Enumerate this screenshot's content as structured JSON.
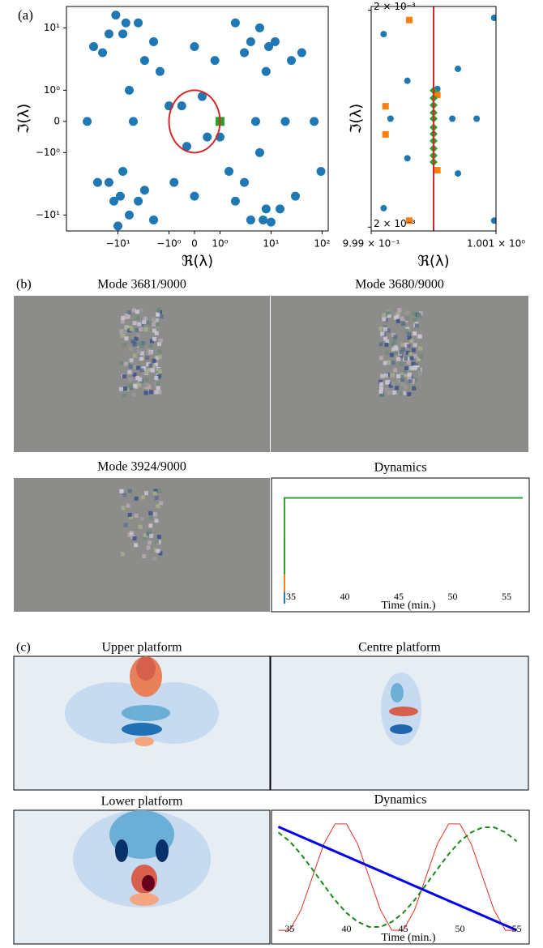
{
  "panel_labels": [
    "(a)",
    "(b)",
    "(c)"
  ],
  "mode_titles": {
    "b": [
      "Mode 3681/9000",
      "Mode 3680/9000",
      "Mode 3924/9000"
    ],
    "c": [
      "Upper platform",
      "Centre platform",
      "Lower platform"
    ]
  },
  "chart_data": [
    {
      "type": "scatter",
      "xlabel": "ℜ(λ)",
      "ylabel": "ℑ(λ)",
      "xscale": "symlog",
      "yscale": "symlog",
      "linthresh": 1,
      "linscale": 0.5,
      "xlim": [
        -102,
        132
      ],
      "ylim": [
        -18,
        22
      ],
      "xticks": [
        {
          "value": -10,
          "label": "−10¹"
        },
        {
          "value": -1,
          "label": "−10⁰"
        },
        0,
        {
          "value": 1,
          "label": "10⁰"
        },
        {
          "value": 10,
          "label": "10¹"
        },
        {
          "value": 100,
          "label": "10²"
        }
      ],
      "yticks": [
        {
          "value": -10,
          "label": "−10¹"
        },
        {
          "value": -1,
          "label": "−10⁰"
        },
        0,
        {
          "value": 1,
          "label": "10⁰"
        },
        {
          "value": 10,
          "label": "10¹"
        }
      ],
      "circle": {
        "radius": 1,
        "color": "#d62728"
      },
      "series": [
        {
          "color": "#1f77b4",
          "marker": "circle",
          "x": [
            -40,
            70,
            19,
            -11,
            -10,
            95,
            10,
            -20,
            -15,
            25,
            -6,
            6,
            -8,
            8,
            -3,
            3,
            -2,
            2,
            -5,
            5,
            -1.5,
            1.5,
            -4,
            4,
            -3,
            3,
            -0.5,
            0.5,
            -0.3,
            0.3,
            -12,
            12,
            -25,
            30,
            -7,
            7,
            -2,
            2,
            15,
            -15,
            0,
            0,
            -1,
            1,
            -8,
            8,
            -30,
            40,
            -6,
            6,
            -4,
            4,
            -9,
            9,
            0.8,
            -0.8
          ],
          "y": [
            0,
            0,
            0,
            16,
            -15,
            -2,
            -13,
            4,
            -3,
            3,
            -10,
            10,
            8,
            -8,
            -4,
            4,
            6,
            -6,
            0,
            0,
            2,
            -2,
            -6,
            6,
            3,
            -3,
            0.5,
            -0.5,
            -0.8,
            0.8,
            -6,
            6,
            -3,
            -5,
            12,
            -12,
            -12,
            12,
            -8,
            8,
            5,
            -5,
            0.5,
            -0.5,
            -2,
            2,
            5,
            4,
            1,
            -1,
            12,
            -12,
            -5,
            5,
            3,
            -3
          ]
        },
        {
          "color": "#2ca02c",
          "marker": "square",
          "x": [
            1
          ],
          "y": [
            0
          ]
        }
      ]
    },
    {
      "type": "scatter",
      "xlabel": "ℜ(λ)",
      "ylabel": "ℑ(λ)",
      "xlim": [
        0.999,
        1.001
      ],
      "ylim": [
        -0.00207,
        0.00207
      ],
      "xticks": [
        {
          "value": 0.999,
          "label": "9.99 × 10⁻¹"
        },
        {
          "value": 1.001,
          "label": "1.001 × 10⁰"
        }
      ],
      "yticks": [
        {
          "value": 0.002,
          "label": "2 × 10⁻³"
        },
        {
          "value": -0.002,
          "label": "2 × 10⁻³"
        }
      ],
      "vline": {
        "x": 1,
        "color": "#d62728"
      },
      "series": [
        {
          "color": "#1f77b4",
          "marker": "circle",
          "x": [
            0.9992,
            0.99958,
            1.00006,
            1.00039,
            0.99931,
            1.0003,
            1.00069,
            0.99958,
            1.00039,
            0.9992,
            1.00097,
            1.00097
          ],
          "y": [
            0.00156,
            0.0007,
            0.00055,
            0.00092,
            0,
            0,
            0,
            -0.00073,
            -0.00101,
            -0.00165,
            -0.00188,
            0.00186
          ]
        },
        {
          "color": "#ff7f0e",
          "marker": "square",
          "x": [
            0.99961,
            0.99923,
            0.99923,
            1.00006,
            1.00006,
            0.99961
          ],
          "y": [
            0.00182,
            0.00023,
            -0.00029,
            0.00044,
            -0.00095,
            -0.00188
          ]
        },
        {
          "color": "#2ca02c",
          "marker": "diamond",
          "x": [
            1,
            1,
            1,
            1,
            1,
            1,
            1,
            1,
            1,
            1,
            1
          ],
          "y": [
            0.00052,
            0.00038,
            0.00025,
            0.00011,
            0,
            -0.00016,
            -0.00028,
            -0.00041,
            -0.00055,
            -0.00068,
            -0.0008
          ]
        }
      ]
    },
    {
      "type": "line",
      "title": "Dynamics",
      "xlabel": "Time (min.)",
      "xlim": [
        33.2,
        57.1
      ],
      "xticks": [
        35,
        40,
        45,
        50,
        55
      ],
      "ylim": [
        0,
        1
      ],
      "series": [
        {
          "color": "#1f77b4",
          "width": 2,
          "x": [
            34.4,
            34.4
          ],
          "y": [
            0,
            0.1
          ]
        },
        {
          "color": "#ff7f0e",
          "width": 2,
          "x": [
            34.4,
            34.4
          ],
          "y": [
            0.1,
            0.55
          ]
        },
        {
          "color": "#2ca02c",
          "width": 2,
          "x": [
            34.4,
            34.4,
            56.5
          ],
          "y": [
            0.25,
            0.9,
            0.9
          ]
        }
      ]
    },
    {
      "type": "line",
      "title": "Dynamics",
      "xlabel": "Time (min.)",
      "xlim": [
        33.4,
        56.1
      ],
      "xticks": [
        35,
        40,
        45,
        50,
        55
      ],
      "ylim": [
        -1.05,
        1.05
      ],
      "series": [
        {
          "color": "#e03020",
          "width": 1,
          "x": [
            34,
            35,
            36,
            37,
            38,
            39,
            40,
            41,
            42,
            43,
            44,
            45,
            46,
            47,
            48,
            49,
            50,
            51,
            52,
            53,
            54,
            55
          ],
          "y": [
            -0.951,
            -0.951,
            -0.588,
            0,
            0.588,
            0.951,
            0.951,
            0.588,
            0,
            -0.588,
            -0.951,
            -0.951,
            -0.588,
            0,
            0.588,
            0.951,
            0.951,
            0.588,
            0,
            -0.588,
            -0.951,
            -0.951
          ]
        },
        {
          "color": "#1a8a1a",
          "width": 2,
          "linestyle": "dashed",
          "x": [
            34,
            35,
            36,
            37,
            38,
            39,
            40,
            41,
            42,
            43,
            44,
            45,
            46,
            47,
            48,
            49,
            50,
            51,
            52,
            53,
            54,
            55
          ],
          "y": [
            0.8,
            0.64,
            0.41,
            0.14,
            -0.14,
            -0.41,
            -0.64,
            -0.8,
            -0.89,
            -0.89,
            -0.8,
            -0.64,
            -0.41,
            -0.14,
            0.14,
            0.41,
            0.64,
            0.8,
            0.89,
            0.89,
            0.8,
            0.64
          ]
        },
        {
          "color": "#0000ee",
          "width": 3,
          "x": [
            34,
            55
          ],
          "y": [
            0.9,
            -0.95
          ]
        }
      ]
    }
  ]
}
